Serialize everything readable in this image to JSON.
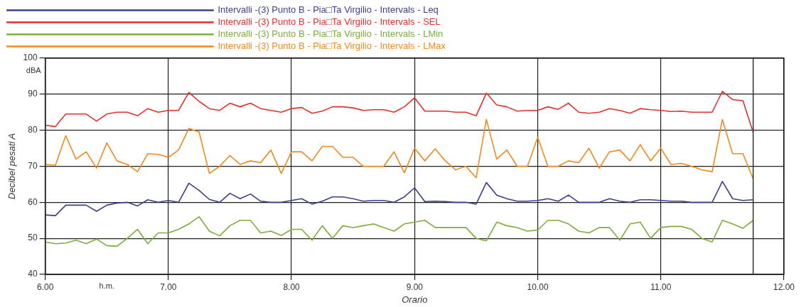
{
  "chart_data": {
    "type": "line",
    "xlabel": "Orario",
    "ylabel": "Decibel pesati A",
    "annotations": [
      "dBA",
      "h.m."
    ],
    "x": [
      6,
      6.083,
      6.167,
      6.25,
      6.333,
      6.417,
      6.5,
      6.583,
      6.667,
      6.75,
      6.833,
      6.917,
      7,
      7.083,
      7.167,
      7.25,
      7.333,
      7.417,
      7.5,
      7.583,
      7.667,
      7.75,
      7.833,
      7.917,
      8,
      8.083,
      8.167,
      8.25,
      8.333,
      8.417,
      8.5,
      8.583,
      8.667,
      8.75,
      8.833,
      8.917,
      9,
      9.083,
      9.167,
      9.25,
      9.333,
      9.417,
      9.5,
      9.583,
      9.667,
      9.75,
      9.833,
      9.917,
      10,
      10.083,
      10.167,
      10.25,
      10.333,
      10.417,
      10.5,
      10.583,
      10.667,
      10.75,
      10.833,
      10.917,
      11,
      11.083,
      11.167,
      11.25,
      11.333,
      11.417,
      11.5,
      11.583,
      11.667,
      11.75
    ],
    "series": [
      {
        "name": "Intervalli -(3) Punto B - Pia□Ta Virgilio - Intervals - Leq",
        "color": "#3a3f8f",
        "values": [
          56.5,
          56.3,
          59.2,
          59.2,
          59.2,
          57.5,
          59.2,
          59.8,
          60,
          59,
          60.7,
          60,
          60.5,
          60,
          65.3,
          63.3,
          60.8,
          60,
          62.5,
          61,
          62.3,
          60.3,
          60,
          60,
          60.5,
          61,
          59.5,
          60.3,
          61.5,
          61.5,
          61,
          60.3,
          60.5,
          60.5,
          60,
          61.5,
          64,
          60.2,
          60.3,
          60.2,
          60,
          60,
          59.5,
          65.5,
          62,
          61,
          60.3,
          60.3,
          60.5,
          61,
          60.3,
          62,
          60,
          60,
          60,
          61,
          60.3,
          60,
          60.7,
          60.7,
          60.5,
          60.3,
          60.3,
          60,
          60,
          60,
          65.8,
          61,
          60.5,
          60.7
        ]
      },
      {
        "name": "Intervalli -(3) Punto B - Pia□Ta Virgilio - Intervals - SEL",
        "color": "#e0312b",
        "values": [
          81.4,
          81,
          84.5,
          84.5,
          84.5,
          82.5,
          84.5,
          85,
          85,
          84,
          86,
          85,
          85.5,
          85.5,
          90.5,
          88,
          86,
          85.5,
          87.5,
          86.5,
          87.5,
          86,
          85.5,
          85,
          86,
          86.3,
          84.7,
          85.3,
          86.5,
          86.5,
          86.2,
          85.5,
          85.7,
          85.7,
          85,
          86.5,
          89,
          85.3,
          85.3,
          85.3,
          85,
          85,
          84,
          90.3,
          87,
          86.5,
          85.3,
          85.5,
          85.5,
          86.5,
          85.8,
          87.5,
          85,
          84.7,
          85,
          86,
          85.5,
          84.7,
          86,
          85.7,
          85.5,
          85.2,
          85.3,
          85,
          85,
          85,
          90.8,
          88.5,
          88.2,
          79.4
        ]
      },
      {
        "name": "Intervalli -(3) Punto B - Pia□Ta Virgilio - Intervals - LMin",
        "color": "#7cae3a",
        "values": [
          49,
          48.5,
          48.7,
          49.5,
          48.5,
          49.8,
          48,
          47.8,
          50,
          52.5,
          48.5,
          51.5,
          51.5,
          52.5,
          54,
          56,
          52,
          50.7,
          53.5,
          55,
          55,
          51.5,
          52,
          50.8,
          52.5,
          52.5,
          49.5,
          53.5,
          50,
          53.5,
          53,
          53.5,
          54,
          53,
          52,
          54,
          54.5,
          55,
          53,
          53,
          53,
          53,
          50,
          49.3,
          54.5,
          53.5,
          53,
          52,
          52.3,
          55,
          55,
          54,
          52,
          51.5,
          53,
          53,
          49.5,
          54,
          54.5,
          50,
          53,
          53.3,
          53.3,
          52.5,
          50,
          49,
          55,
          54,
          52.8,
          55
        ]
      },
      {
        "name": "Intervalli -(3) Punto B - Pia□Ta Virgilio - Intervals - LMax",
        "color": "#f08a1c",
        "values": [
          70.5,
          70.3,
          78.5,
          72,
          74,
          69.5,
          76.5,
          71.5,
          70.5,
          68.5,
          73.5,
          73.3,
          72.5,
          74.5,
          80.5,
          79.5,
          68,
          70,
          73,
          70.5,
          71.5,
          71,
          74.5,
          68,
          74,
          74,
          71.5,
          75.5,
          75.5,
          72.5,
          72.5,
          70,
          70,
          70,
          74,
          68.2,
          75,
          71.5,
          74.8,
          71.5,
          69,
          70,
          66.8,
          83,
          72,
          74.5,
          70,
          70,
          78,
          70,
          70,
          71.5,
          71,
          75,
          69.5,
          74,
          74.5,
          71.5,
          76,
          71.5,
          75,
          70.5,
          70.8,
          70,
          69,
          68.5,
          83,
          73.5,
          73.5,
          66.5
        ]
      }
    ],
    "xlim": [
      6,
      12
    ],
    "xticks": [
      {
        "value": 6,
        "label": "6.00"
      },
      {
        "value": 7,
        "label": "7.00"
      },
      {
        "value": 8,
        "label": "8.00"
      },
      {
        "value": 9,
        "label": "9.00"
      },
      {
        "value": 10,
        "label": "10.00"
      },
      {
        "value": 11,
        "label": "11.00"
      },
      {
        "value": 12,
        "label": "12.00"
      }
    ],
    "ylim": [
      40,
      100
    ],
    "yticks": [
      40,
      50,
      60,
      70,
      80,
      90,
      100
    ],
    "ref_lines": [
      {
        "axis": "x",
        "value": 11.75,
        "label": null
      }
    ],
    "grid": true,
    "legend": "top",
    "marker": "none",
    "line_style": "solid"
  }
}
